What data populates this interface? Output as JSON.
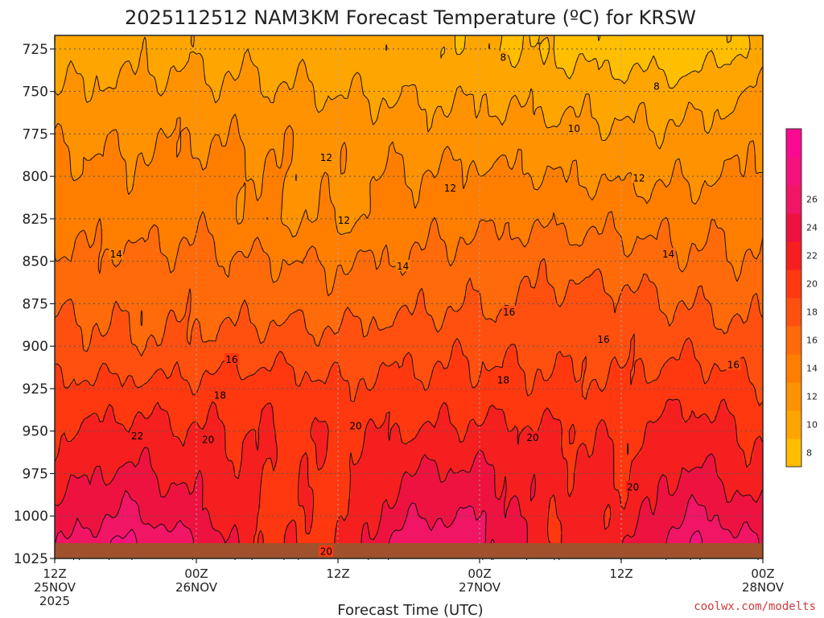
{
  "chart_data": {
    "type": "heatmap",
    "title": "2025112512 NAM3KM Forecast Temperature (ºC) for KRSW",
    "xlabel": "Forecast Time (UTC)",
    "ylabel": "",
    "y_axis": {
      "levels": [
        725,
        750,
        775,
        800,
        825,
        850,
        875,
        900,
        925,
        950,
        975,
        1000,
        1025
      ],
      "ylim": [
        1025,
        717
      ],
      "reversed": true
    },
    "x_axis": {
      "xlim": [
        0,
        60
      ],
      "ticks": [
        {
          "hour": 0,
          "label1": "12Z",
          "label2": "25NOV",
          "label3": "2025"
        },
        {
          "hour": 12,
          "label1": "00Z",
          "label2": "26NOV",
          "label3": ""
        },
        {
          "hour": 24,
          "label1": "12Z",
          "label2": "",
          "label3": ""
        },
        {
          "hour": 36,
          "label1": "00Z",
          "label2": "27NOV",
          "label3": ""
        },
        {
          "hour": 48,
          "label1": "12Z",
          "label2": "",
          "label3": ""
        },
        {
          "hour": 60,
          "label1": "00Z",
          "label2": "28NOV",
          "label3": ""
        }
      ]
    },
    "grid": true,
    "surface_pressure": 1016,
    "colorbar": {
      "levels": [
        6,
        8,
        10,
        12,
        14,
        16,
        18,
        20,
        22,
        24,
        26,
        28
      ],
      "tick_labels": [
        8,
        10,
        12,
        14,
        16,
        18,
        20,
        22,
        24,
        26
      ],
      "colors": [
        "#ffbe00",
        "#ffa500",
        "#ff9200",
        "#ff7e00",
        "#ff6a0a",
        "#ff5010",
        "#ff3810",
        "#f51f1f",
        "#ee1240",
        "#f01565",
        "#f5127c",
        "#fa0a90"
      ]
    },
    "temperature_profiles": {
      "hours": [
        0,
        6,
        12,
        18,
        24,
        30,
        36,
        42,
        48,
        54,
        60
      ],
      "pressures": [
        725,
        750,
        775,
        800,
        825,
        850,
        875,
        900,
        925,
        950,
        975,
        1000,
        1015
      ],
      "values": [
        [
          8.8,
          10.0,
          11.6,
          12.5,
          13.5,
          14.3,
          15.6,
          16.9,
          18.5,
          19.8,
          21.0,
          22.5,
          23.5
        ],
        [
          9.3,
          10.5,
          11.6,
          12.5,
          13.0,
          14.4,
          15.5,
          16.3,
          18.6,
          20.8,
          22.5,
          24.5,
          26.3
        ],
        [
          9.3,
          10.5,
          11.8,
          12.8,
          13.5,
          14.6,
          15.3,
          16.5,
          18.5,
          20.2,
          21.3,
          22.5,
          24.0
        ],
        [
          9.1,
          10.4,
          11.6,
          12.1,
          12.0,
          14.2,
          15.2,
          17.0,
          19.3,
          20.0,
          19.8,
          19.5,
          19.8
        ],
        [
          8.8,
          9.9,
          11.3,
          11.4,
          11.7,
          13.9,
          15.0,
          16.8,
          18.2,
          19.8,
          19.5,
          19.7,
          19.8
        ],
        [
          8.6,
          9.7,
          11.0,
          12.2,
          13.0,
          14.2,
          15.6,
          17.2,
          18.7,
          20.0,
          22.0,
          23.8,
          25.5
        ],
        [
          8.2,
          9.6,
          10.9,
          12.5,
          13.5,
          15.0,
          15.8,
          17.6,
          18.7,
          20.5,
          22.5,
          24.0,
          25.0
        ],
        [
          7.6,
          9.2,
          10.7,
          12.0,
          13.5,
          15.3,
          16.6,
          17.4,
          18.5,
          20.3,
          20.8,
          20.4,
          20.2
        ],
        [
          7.0,
          9.0,
          10.3,
          11.6,
          13.4,
          14.9,
          16.8,
          17.2,
          18.3,
          19.6,
          20.1,
          20.5,
          21.5
        ],
        [
          6.6,
          8.8,
          10.4,
          11.7,
          13.3,
          14.3,
          15.8,
          17.6,
          19.3,
          21.0,
          22.5,
          24.5,
          26.0
        ],
        [
          8.8,
          10.2,
          11.5,
          12.4,
          13.3,
          14.3,
          15.4,
          16.5,
          18.2,
          19.7,
          20.5,
          22.5,
          23.8
        ]
      ]
    },
    "contour_labels": [
      {
        "text": "8",
        "hour": 38.0,
        "pressure": 730
      },
      {
        "text": "8",
        "hour": 51.0,
        "pressure": 747
      },
      {
        "text": "10",
        "hour": 44.0,
        "pressure": 772
      },
      {
        "text": "12",
        "hour": 23.0,
        "pressure": 789
      },
      {
        "text": "12",
        "hour": 33.5,
        "pressure": 807
      },
      {
        "text": "12",
        "hour": 24.5,
        "pressure": 826
      },
      {
        "text": "12",
        "hour": 49.5,
        "pressure": 801
      },
      {
        "text": "14",
        "hour": 5.2,
        "pressure": 846
      },
      {
        "text": "14",
        "hour": 29.5,
        "pressure": 853
      },
      {
        "text": "14",
        "hour": 52.0,
        "pressure": 846
      },
      {
        "text": "16",
        "hour": 38.5,
        "pressure": 880
      },
      {
        "text": "16",
        "hour": 15.0,
        "pressure": 908
      },
      {
        "text": "16",
        "hour": 46.5,
        "pressure": 896
      },
      {
        "text": "16",
        "hour": 57.5,
        "pressure": 911
      },
      {
        "text": "18",
        "hour": 38.0,
        "pressure": 920
      },
      {
        "text": "18",
        "hour": 14.0,
        "pressure": 929
      },
      {
        "text": "20",
        "hour": 25.5,
        "pressure": 947
      },
      {
        "text": "20",
        "hour": 40.5,
        "pressure": 954
      },
      {
        "text": "20",
        "hour": 13.0,
        "pressure": 955
      },
      {
        "text": "20",
        "hour": 49.0,
        "pressure": 983
      },
      {
        "text": "20",
        "hour": 23.0,
        "pressure": 1021
      },
      {
        "text": "22",
        "hour": 7.0,
        "pressure": 953
      }
    ]
  },
  "credit": "coolwx.com/modelts"
}
